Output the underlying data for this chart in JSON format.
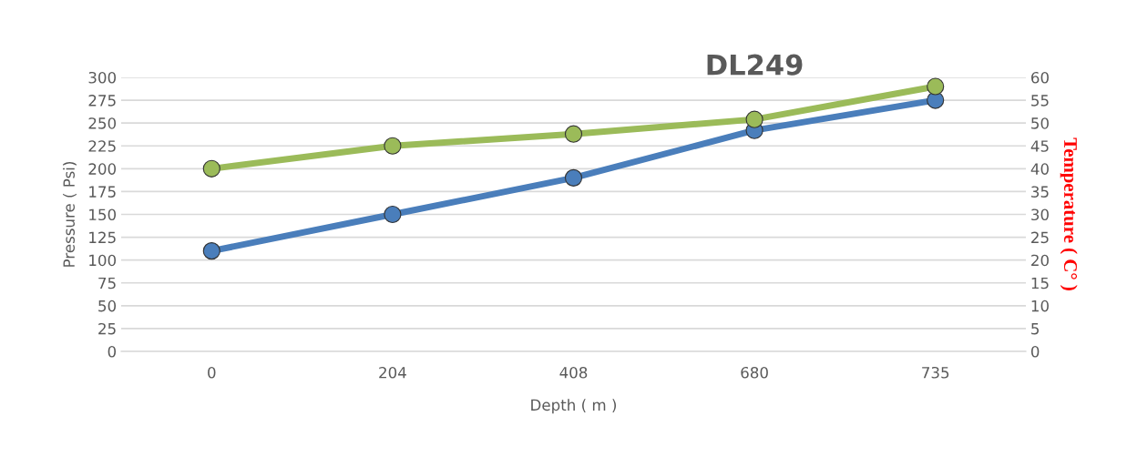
{
  "chart_data": {
    "type": "line",
    "title": "DL249",
    "xlabel": "Depth ( m )",
    "ylabel": "Pressure ( Psi)",
    "y2label": "Temperature ( C° )",
    "categories": [
      "0",
      "204",
      "408",
      "680",
      "735"
    ],
    "series": [
      {
        "color": "#4a7ebb",
        "values": [
          110,
          150,
          190,
          242,
          275
        ]
      },
      {
        "color": "#9bbb59",
        "axis": "y2",
        "values": [
          40,
          45,
          47.6,
          50.8,
          58
        ]
      }
    ],
    "ylim": [
      0,
      300
    ],
    "yticks": [
      0,
      25,
      50,
      75,
      100,
      125,
      150,
      175,
      200,
      225,
      250,
      275,
      300
    ],
    "y2lim": [
      0,
      60
    ],
    "y2ticks": [
      0,
      5,
      10,
      15,
      20,
      25,
      30,
      35,
      40,
      45,
      50,
      55,
      60
    ],
    "grid": "y",
    "marker": "circle",
    "line_style": "solid",
    "legend": false
  }
}
